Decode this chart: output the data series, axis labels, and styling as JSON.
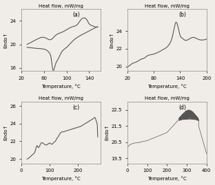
{
  "fig_width": 3.12,
  "fig_height": 2.69,
  "dpi": 100,
  "background_color": "#f0ede8",
  "line_color": "#555555",
  "panels": [
    {
      "label": "(a)",
      "xlabel": "Temperature, °C",
      "ylabel": "Endo↑",
      "title": "Heat flow, mW/mg",
      "xlim": [
        20,
        160
      ],
      "ylim": [
        15.5,
        26
      ],
      "xticks": [
        20,
        60,
        100,
        140
      ],
      "yticks": [
        16,
        20,
        24
      ]
    },
    {
      "label": "(b)",
      "xlabel": "Temperature, °C",
      "ylabel": "Endo↑",
      "title": "Heat flow, mW/mg",
      "xlim": [
        20,
        200
      ],
      "ylim": [
        19.5,
        26.5
      ],
      "xticks": [
        20,
        80,
        140,
        200
      ],
      "yticks": [
        20,
        22,
        24
      ]
    },
    {
      "label": "(c)",
      "xlabel": "Temperature, °C",
      "ylabel": "Endo↑",
      "title": "Heat flow, mW/mg",
      "xlim": [
        0,
        280
      ],
      "ylim": [
        19.5,
        26.5
      ],
      "xticks": [
        0,
        100,
        200
      ],
      "yticks": [
        20,
        22,
        24,
        26
      ]
    },
    {
      "label": "(d)",
      "xlabel": "Temperature, °C",
      "ylabel": "Endo↑",
      "title": "Heat flow, mW/mg",
      "xlim": [
        0,
        400
      ],
      "ylim": [
        19.2,
        23.0
      ],
      "xticks": [
        0,
        100,
        200,
        300,
        400
      ],
      "yticks": [
        19.5,
        20.5,
        21.5,
        22.5
      ]
    }
  ]
}
